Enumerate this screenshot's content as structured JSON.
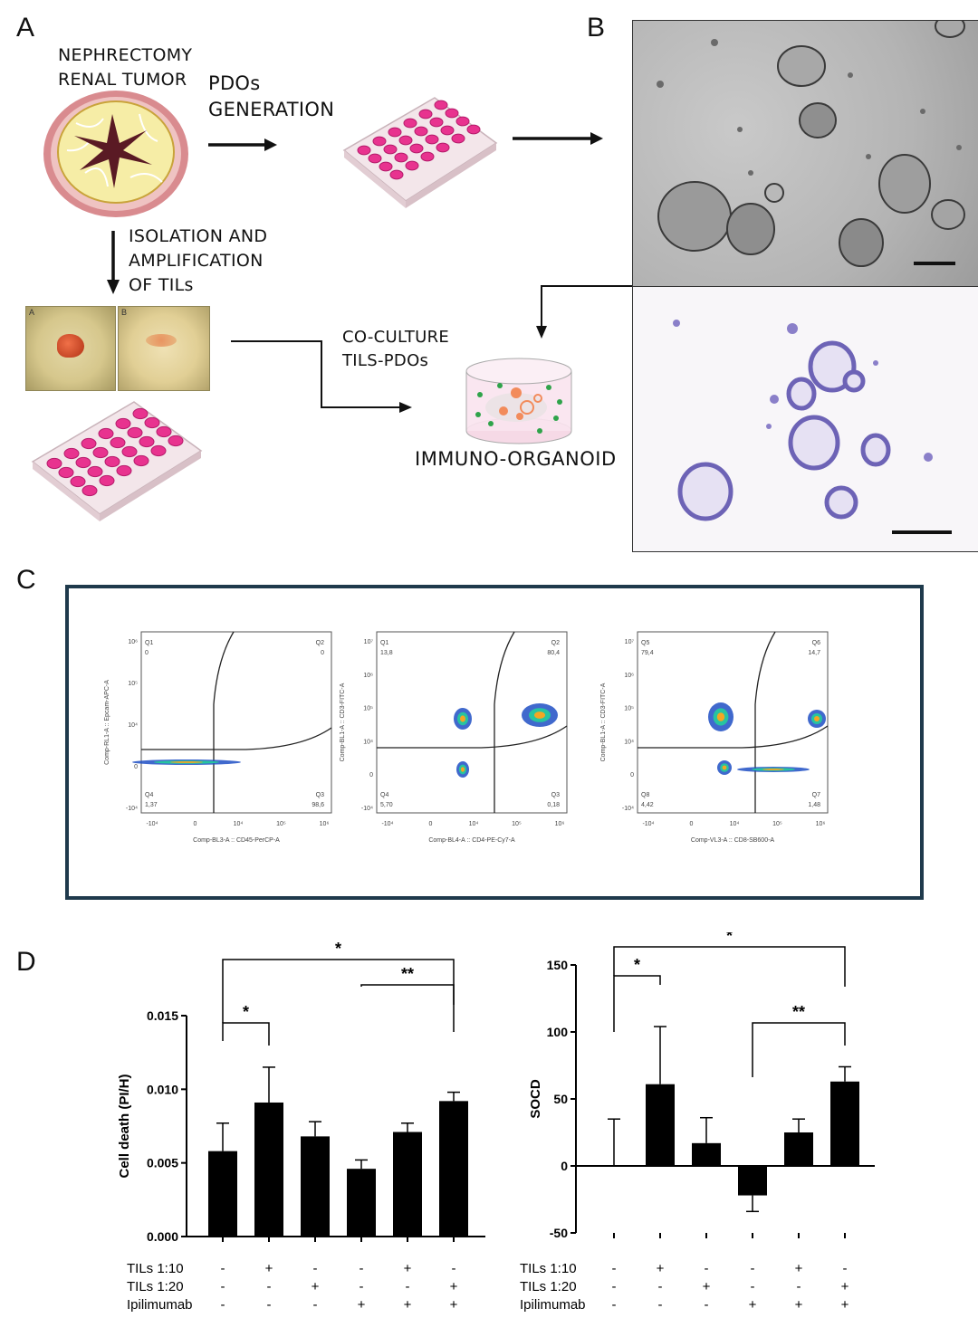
{
  "panels": {
    "a": "A",
    "b": "B",
    "c": "C",
    "d": "D"
  },
  "panel_a": {
    "source": [
      "NEPHRECTOMY",
      "RENAL TUMOR"
    ],
    "pdo_step": [
      "PDOs",
      "GENERATION"
    ],
    "til_step": [
      "ISOLATION AND",
      "AMPLIFICATION",
      "OF TILs"
    ],
    "photo_labels": [
      "A",
      "B"
    ],
    "coculture": [
      "CO-CULTURE",
      "TILS-PDOs"
    ],
    "result": "IMMUNO-ORGANOID"
  },
  "panel_c": {
    "plots": [
      {
        "ylabel": "Comp-RL1-A :: Epcam-APC-A",
        "xlabel": "Comp-BL3-A :: CD45-PerCP-A",
        "quadrants": [
          {
            "name": "Q1",
            "value": "0"
          },
          {
            "name": "Q2",
            "value": "0"
          },
          {
            "name": "Q4",
            "value": "1,37"
          },
          {
            "name": "Q3",
            "value": "98,6"
          }
        ],
        "xticks": [
          "-10⁴",
          "0",
          "10⁴",
          "10⁵",
          "10⁶"
        ],
        "yticks": [
          "10⁶",
          "10⁵",
          "10⁴",
          "0",
          "-10⁴"
        ]
      },
      {
        "ylabel": "Comp-BL1-A :: CD3-FITC-A",
        "xlabel": "Comp-BL4-A :: CD4-PE-Cy7-A",
        "quadrants": [
          {
            "name": "Q1",
            "value": "13,8"
          },
          {
            "name": "Q2",
            "value": "80,4"
          },
          {
            "name": "Q4",
            "value": "5,70"
          },
          {
            "name": "Q3",
            "value": "0,18"
          }
        ],
        "xticks": [
          "-10⁴",
          "0",
          "10⁴",
          "10⁵",
          "10⁶"
        ],
        "yticks": [
          "10⁷",
          "10⁶",
          "10⁵",
          "10⁴",
          "0",
          "-10⁴"
        ]
      },
      {
        "ylabel": "Comp-BL1-A :: CD3-FITC-A",
        "xlabel": "Comp-VL3-A :: CD8-SB600-A",
        "quadrants": [
          {
            "name": "Q5",
            "value": "79,4"
          },
          {
            "name": "Q6",
            "value": "14,7"
          },
          {
            "name": "Q8",
            "value": "4,42"
          },
          {
            "name": "Q7",
            "value": "1,48"
          }
        ],
        "xticks": [
          "-10⁴",
          "0",
          "10⁴",
          "10⁵",
          "10⁶"
        ],
        "yticks": [
          "10⁷",
          "10⁶",
          "10⁵",
          "10⁴",
          "0",
          "-10⁴"
        ]
      }
    ]
  },
  "chart_data": [
    {
      "type": "bar",
      "ylabel": "Cell death (PI/H)",
      "ylim": [
        0,
        0.015
      ],
      "yticks": [
        "0.000",
        "0.005",
        "0.010",
        "0.015"
      ],
      "values": [
        0.0058,
        0.0091,
        0.0068,
        0.0046,
        0.0071,
        0.0092
      ],
      "errors": [
        0.0019,
        0.0024,
        0.001,
        0.0006,
        0.0006,
        0.0006
      ],
      "conditions": [
        {
          "name": "TILs 1:10",
          "values": [
            "-",
            "+",
            "-",
            "-",
            "+",
            "-"
          ]
        },
        {
          "name": "TILs 1:20",
          "values": [
            "-",
            "-",
            "+",
            "-",
            "-",
            "+"
          ]
        },
        {
          "name": "Ipilimumab",
          "values": [
            "-",
            "-",
            "-",
            "+",
            "+",
            "+"
          ]
        }
      ],
      "significance": [
        {
          "from": 1,
          "to": 2,
          "label": "*"
        },
        {
          "from": 4,
          "to": 6,
          "label": "**"
        },
        {
          "from": 1,
          "to": 6,
          "label": "*"
        }
      ]
    },
    {
      "type": "bar",
      "ylabel": "SOCD",
      "ylim": [
        -50,
        150
      ],
      "yticks": [
        "-50",
        "0",
        "50",
        "100",
        "150"
      ],
      "values": [
        0,
        61,
        17,
        -22,
        25,
        63
      ],
      "errors": [
        35,
        43,
        19,
        12,
        10,
        11
      ],
      "conditions": [
        {
          "name": "TILs 1:10",
          "values": [
            "-",
            "+",
            "-",
            "-",
            "+",
            "-"
          ]
        },
        {
          "name": "TILs 1:20",
          "values": [
            "-",
            "-",
            "+",
            "-",
            "-",
            "+"
          ]
        },
        {
          "name": "Ipilimumab",
          "values": [
            "-",
            "-",
            "-",
            "+",
            "+",
            "+"
          ]
        }
      ],
      "significance": [
        {
          "from": 1,
          "to": 2,
          "label": "*"
        },
        {
          "from": 4,
          "to": 6,
          "label": "**"
        },
        {
          "from": 1,
          "to": 6,
          "label": "*"
        }
      ]
    }
  ]
}
